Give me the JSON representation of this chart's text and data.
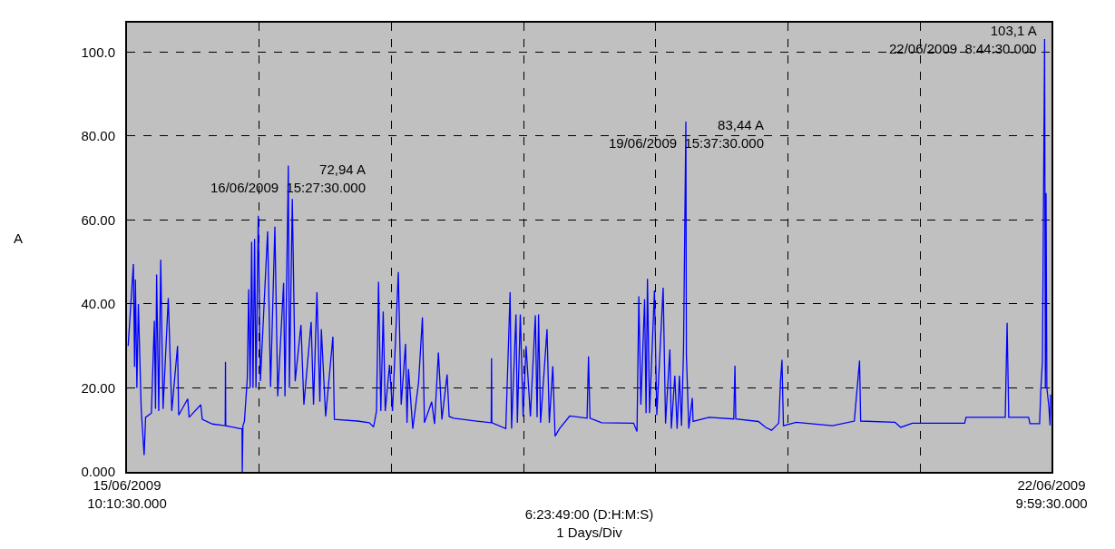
{
  "chart_data": {
    "type": "line",
    "xlabel": "6:23:49:00 (D:H:M:S)\n1 Days/Div",
    "ylabel": "A",
    "xlim": [
      "2009-06-15T10:10:30",
      "2009-06-22T09:59:30"
    ],
    "xticks": [
      {
        "value": "2009-06-15T10:10:30",
        "label": "15/06/2009\n10:10:30.000"
      },
      {
        "value": "2009-06-16T10:10:30",
        "label": null
      },
      {
        "value": "2009-06-17T10:10:30",
        "label": null
      },
      {
        "value": "2009-06-18T10:10:30",
        "label": null
      },
      {
        "value": "2009-06-19T10:10:30",
        "label": null
      },
      {
        "value": "2009-06-20T10:10:30",
        "label": null
      },
      {
        "value": "2009-06-21T10:10:30",
        "label": null
      },
      {
        "value": "2009-06-22T09:59:30",
        "label": "22/06/2009\n9:59:30.000"
      }
    ],
    "ylim": [
      0,
      107
    ],
    "yticks": [
      {
        "value": 0,
        "label": "0.000"
      },
      {
        "value": 20,
        "label": "20.00"
      },
      {
        "value": 40,
        "label": "40.00"
      },
      {
        "value": 60,
        "label": "60.00"
      },
      {
        "value": 80,
        "label": "80.00"
      },
      {
        "value": 100,
        "label": "100.0"
      }
    ],
    "grid": true,
    "annotations": [
      {
        "text": "72,94 A\n16/06/2009  15:27:30.000",
        "x": "2009-06-16T15:27:30",
        "y": 72.94
      },
      {
        "text": "83,44 A\n19/06/2009  15:37:30.000",
        "x": "2009-06-19T15:37:30",
        "y": 83.44
      },
      {
        "text": "103,1 A\n22/06/2009  8:44:30.000",
        "x": "2009-06-22T08:44:30",
        "y": 103.1
      }
    ],
    "series": [
      {
        "color": "#0000ff",
        "x": [
          "2009-06-15T10:23",
          "2009-06-15T11:20",
          "2009-06-15T11:33",
          "2009-06-15T11:42",
          "2009-06-15T11:58",
          "2009-06-15T12:14",
          "2009-06-15T12:45",
          "2009-06-15T13:17",
          "2009-06-15T13:33",
          "2009-06-15T14:36",
          "2009-06-15T15:08",
          "2009-06-15T15:21",
          "2009-06-15T15:33",
          "2009-06-15T15:56",
          "2009-06-15T16:18",
          "2009-06-15T16:43",
          "2009-06-15T17:40",
          "2009-06-15T18:18",
          "2009-06-15T19:21",
          "2009-06-15T19:33",
          "2009-06-15T21:12",
          "2009-06-15T21:27",
          "2009-06-15T23:34",
          "2009-06-15T23:50",
          "2009-06-16T01:41",
          "2009-06-16T04:00",
          "2009-06-16T04:03",
          "2009-06-16T04:06",
          "2009-06-16T06:41",
          "2009-06-16T07:03",
          "2009-06-16T07:06",
          "2009-06-16T07:13",
          "2009-06-16T07:29",
          "2009-06-16T08:00",
          "2009-06-16T08:16",
          "2009-06-16T08:32",
          "2009-06-16T08:48",
          "2009-06-16T09:03",
          "2009-06-16T09:20",
          "2009-06-16T09:35",
          "2009-06-16T10:00",
          "2009-06-16T10:23",
          "2009-06-16T11:42",
          "2009-06-16T12:14",
          "2009-06-16T13:01",
          "2009-06-16T13:32",
          "2009-06-16T14:36",
          "2009-06-16T14:51",
          "2009-06-16T15:27:30",
          "2009-06-16T15:39",
          "2009-06-16T16:11",
          "2009-06-16T16:42",
          "2009-06-16T17:45",
          "2009-06-16T18:17",
          "2009-06-16T19:36",
          "2009-06-16T20:02",
          "2009-06-16T20:39",
          "2009-06-16T21:11",
          "2009-06-16T21:27",
          "2009-06-16T22:14",
          "2009-06-16T23:33",
          "2009-06-16T23:49",
          "2009-06-17T04:02",
          "2009-06-17T06:09",
          "2009-06-17T06:56",
          "2009-06-17T07:28",
          "2009-06-17T07:50",
          "2009-06-17T08:15",
          "2009-06-17T08:41",
          "2009-06-17T09:03",
          "2009-06-17T09:50",
          "2009-06-17T10:22",
          "2009-06-17T10:54",
          "2009-06-17T11:25",
          "2009-06-17T11:57",
          "2009-06-17T12:44",
          "2009-06-17T13:00",
          "2009-06-17T13:16",
          "2009-06-17T14:03",
          "2009-06-17T15:06",
          "2009-06-17T15:48",
          "2009-06-17T16:10",
          "2009-06-17T17:29",
          "2009-06-17T18:00",
          "2009-06-17T18:42",
          "2009-06-17T19:20",
          "2009-06-17T20:17",
          "2009-06-17T20:39",
          "2009-06-17T21:26",
          "2009-06-18T01:39",
          "2009-06-18T04:17",
          "2009-06-18T04:21",
          "2009-06-18T04:24",
          "2009-06-18T06:56",
          "2009-06-18T07:43",
          "2009-06-18T07:59",
          "2009-06-18T08:47",
          "2009-06-18T09:02",
          "2009-06-18T09:34",
          "2009-06-18T10:05",
          "2009-06-18T10:37",
          "2009-06-18T11:24",
          "2009-06-18T12:18",
          "2009-06-18T12:37",
          "2009-06-18T12:53",
          "2009-06-18T13:15",
          "2009-06-18T14:25",
          "2009-06-18T14:50",
          "2009-06-18T15:28",
          "2009-06-18T15:53",
          "2009-06-18T16:41",
          "2009-06-18T18:32",
          "2009-06-18T21:41",
          "2009-06-18T21:57",
          "2009-06-18T22:13",
          "2009-06-19T00:20",
          "2009-06-19T06:08",
          "2009-06-19T06:45",
          "2009-06-19T07:05",
          "2009-06-19T07:27",
          "2009-06-19T08:08",
          "2009-06-19T08:24",
          "2009-06-19T08:39",
          "2009-06-19T09:02",
          "2009-06-19T09:55",
          "2009-06-19T10:21",
          "2009-06-19T11:30",
          "2009-06-19T11:56",
          "2009-06-19T12:43",
          "2009-06-19T12:59",
          "2009-06-19T13:37",
          "2009-06-19T14:02",
          "2009-06-19T14:27",
          "2009-06-19T14:50",
          "2009-06-19T15:12",
          "2009-06-19T15:37:30",
          "2009-06-19T15:43",
          "2009-06-19T16:09",
          "2009-06-19T16:47",
          "2009-06-19T16:56",
          "2009-06-19T19:50",
          "2009-06-20T00:19",
          "2009-06-20T00:32",
          "2009-06-20T00:41",
          "2009-06-20T04:48",
          "2009-06-20T06:07",
          "2009-06-20T07:11",
          "2009-06-20T08:29",
          "2009-06-20T08:48",
          "2009-06-20T09:04",
          "2009-06-20T09:20",
          "2009-06-20T11:39",
          "2009-06-20T18:14",
          "2009-06-20T22:12",
          "2009-06-20T23:09",
          "2009-06-20T23:21",
          "2009-06-21T05:35",
          "2009-06-21T06:38",
          "2009-06-21T08:44",
          "2009-06-21T18:14",
          "2009-06-21T18:29",
          "2009-06-22T01:36",
          "2009-06-22T01:56",
          "2009-06-22T02:14",
          "2009-06-22T05:50",
          "2009-06-22T06:05",
          "2009-06-22T07:50",
          "2009-06-22T08:03",
          "2009-06-22T08:21",
          "2009-06-22T08:44:30",
          "2009-06-22T08:53",
          "2009-06-22T09:00",
          "2009-06-22T09:09",
          "2009-06-22T09:31",
          "2009-06-22T09:44",
          "2009-06-22T09:50"
        ],
        "values": [
          30,
          49.5,
          25,
          45.8,
          20,
          40,
          15,
          4,
          13,
          14,
          36,
          15,
          47,
          14.5,
          50.5,
          15,
          41.4,
          14.5,
          30,
          13.5,
          17.4,
          13,
          16,
          12.5,
          11.4,
          11,
          26.2,
          11,
          10.3,
          10.3,
          0,
          11,
          12,
          22,
          43.5,
          20,
          54.8,
          20,
          55.5,
          20,
          61,
          21.6,
          57.3,
          20.2,
          58.4,
          18,
          45,
          18,
          72.94,
          20,
          65,
          21.6,
          35,
          16,
          35.7,
          16,
          42.8,
          16.7,
          34,
          13.2,
          32.2,
          12.5,
          12.1,
          11.7,
          10.7,
          14.5,
          45.3,
          14.5,
          38.2,
          14.5,
          25.5,
          14.5,
          30.8,
          47.6,
          16,
          30.5,
          11.7,
          24.5,
          10.3,
          21.3,
          36.8,
          11.7,
          16.7,
          11.4,
          28.4,
          12.5,
          23.2,
          13.2,
          12.8,
          12.1,
          11.7,
          27.1,
          11.7,
          10.3,
          42.8,
          10.3,
          37.5,
          11.7,
          37.5,
          13.2,
          30,
          13.2,
          37.3,
          13,
          37.5,
          11.7,
          34,
          11.7,
          25.2,
          8.5,
          10.3,
          13.3,
          12.8,
          27.5,
          12.8,
          11.7,
          11.6,
          9.6,
          41.8,
          16,
          41.1,
          14,
          46,
          14,
          43.2,
          13.5,
          43.9,
          11.5,
          29.2,
          10.3,
          22.9,
          10.3,
          22.9,
          11,
          29.2,
          83.44,
          27.8,
          10.3,
          17.6,
          12,
          13,
          12.6,
          25.3,
          12.6,
          12,
          10.6,
          9.9,
          11.6,
          21.5,
          26.7,
          11,
          11.8,
          11,
          12.1,
          26.5,
          12.1,
          11.8,
          10.6,
          11.6,
          11.6,
          13,
          13,
          35.5,
          13,
          13,
          11.5,
          11.5,
          19.5,
          26.4,
          103.1,
          20,
          66.4,
          20,
          15.5,
          11.1,
          18.4
        ]
      }
    ]
  }
}
